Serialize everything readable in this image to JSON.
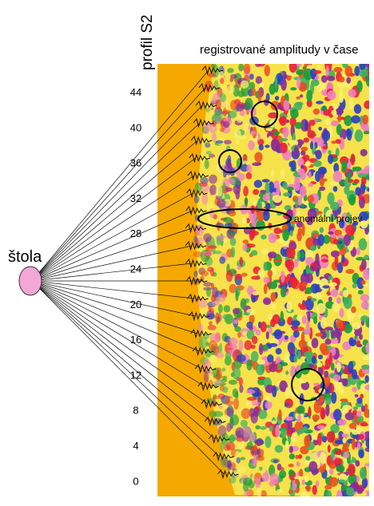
{
  "figure": {
    "title": "registrované amplitudy v čase",
    "axis_label": "profil S2",
    "source_label": "štola",
    "annotation": "anomální projev",
    "depth_labels": [
      44,
      40,
      36,
      32,
      28,
      24,
      20,
      16,
      12,
      8,
      4,
      0
    ]
  }
}
